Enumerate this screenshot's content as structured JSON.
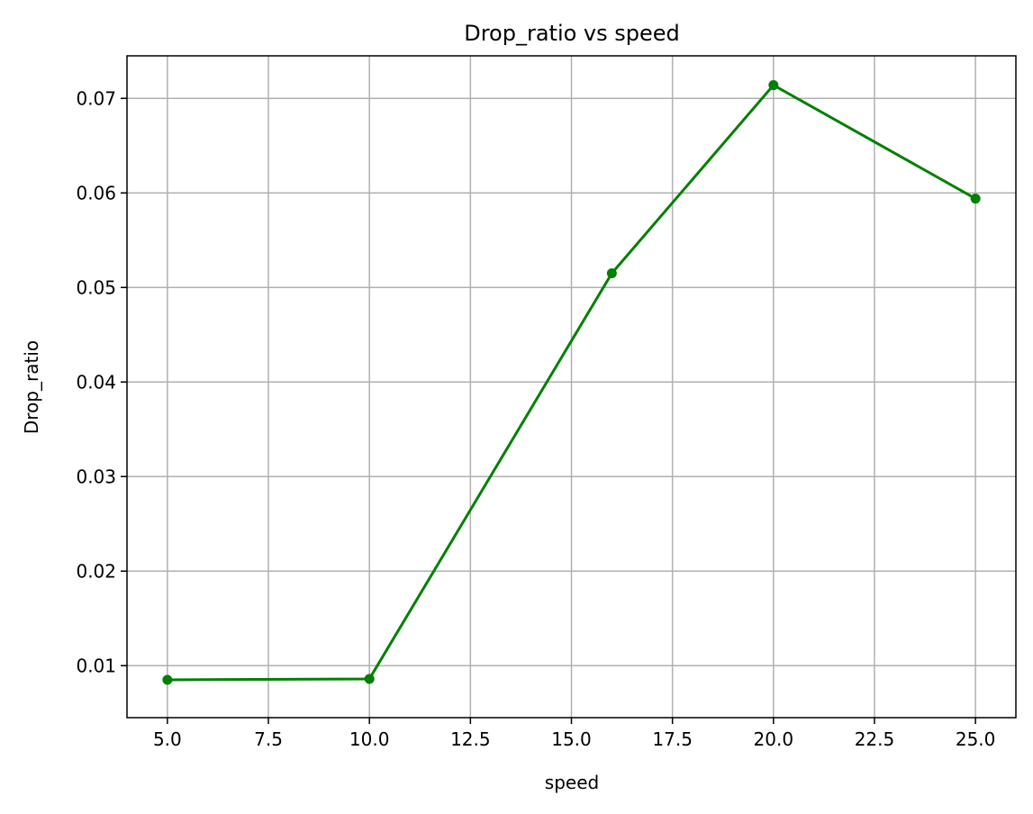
{
  "chart_data": {
    "type": "line",
    "title": "Drop_ratio vs speed",
    "xlabel": "speed",
    "ylabel": "Drop_ratio",
    "xlim": [
      4.0,
      26.0
    ],
    "ylim": [
      0.0045,
      0.0745
    ],
    "x_ticks": [
      5.0,
      7.5,
      10.0,
      12.5,
      15.0,
      17.5,
      20.0,
      22.5,
      25.0
    ],
    "x_tick_labels": [
      "5.0",
      "7.5",
      "10.0",
      "12.5",
      "15.0",
      "17.5",
      "20.0",
      "22.5",
      "25.0"
    ],
    "y_ticks": [
      0.01,
      0.02,
      0.03,
      0.04,
      0.05,
      0.06,
      0.07
    ],
    "y_tick_labels": [
      "0.01",
      "0.02",
      "0.03",
      "0.04",
      "0.05",
      "0.06",
      "0.07"
    ],
    "grid": true,
    "series": [
      {
        "x": [
          5,
          10,
          16,
          20,
          25
        ],
        "values": [
          0.0085,
          0.0086,
          0.0515,
          0.0714,
          0.0594
        ],
        "color": "#008000",
        "marker": "circle"
      }
    ],
    "colors": {
      "grid": "#b0b0b0",
      "axes": "#000000",
      "background": "#ffffff"
    }
  }
}
